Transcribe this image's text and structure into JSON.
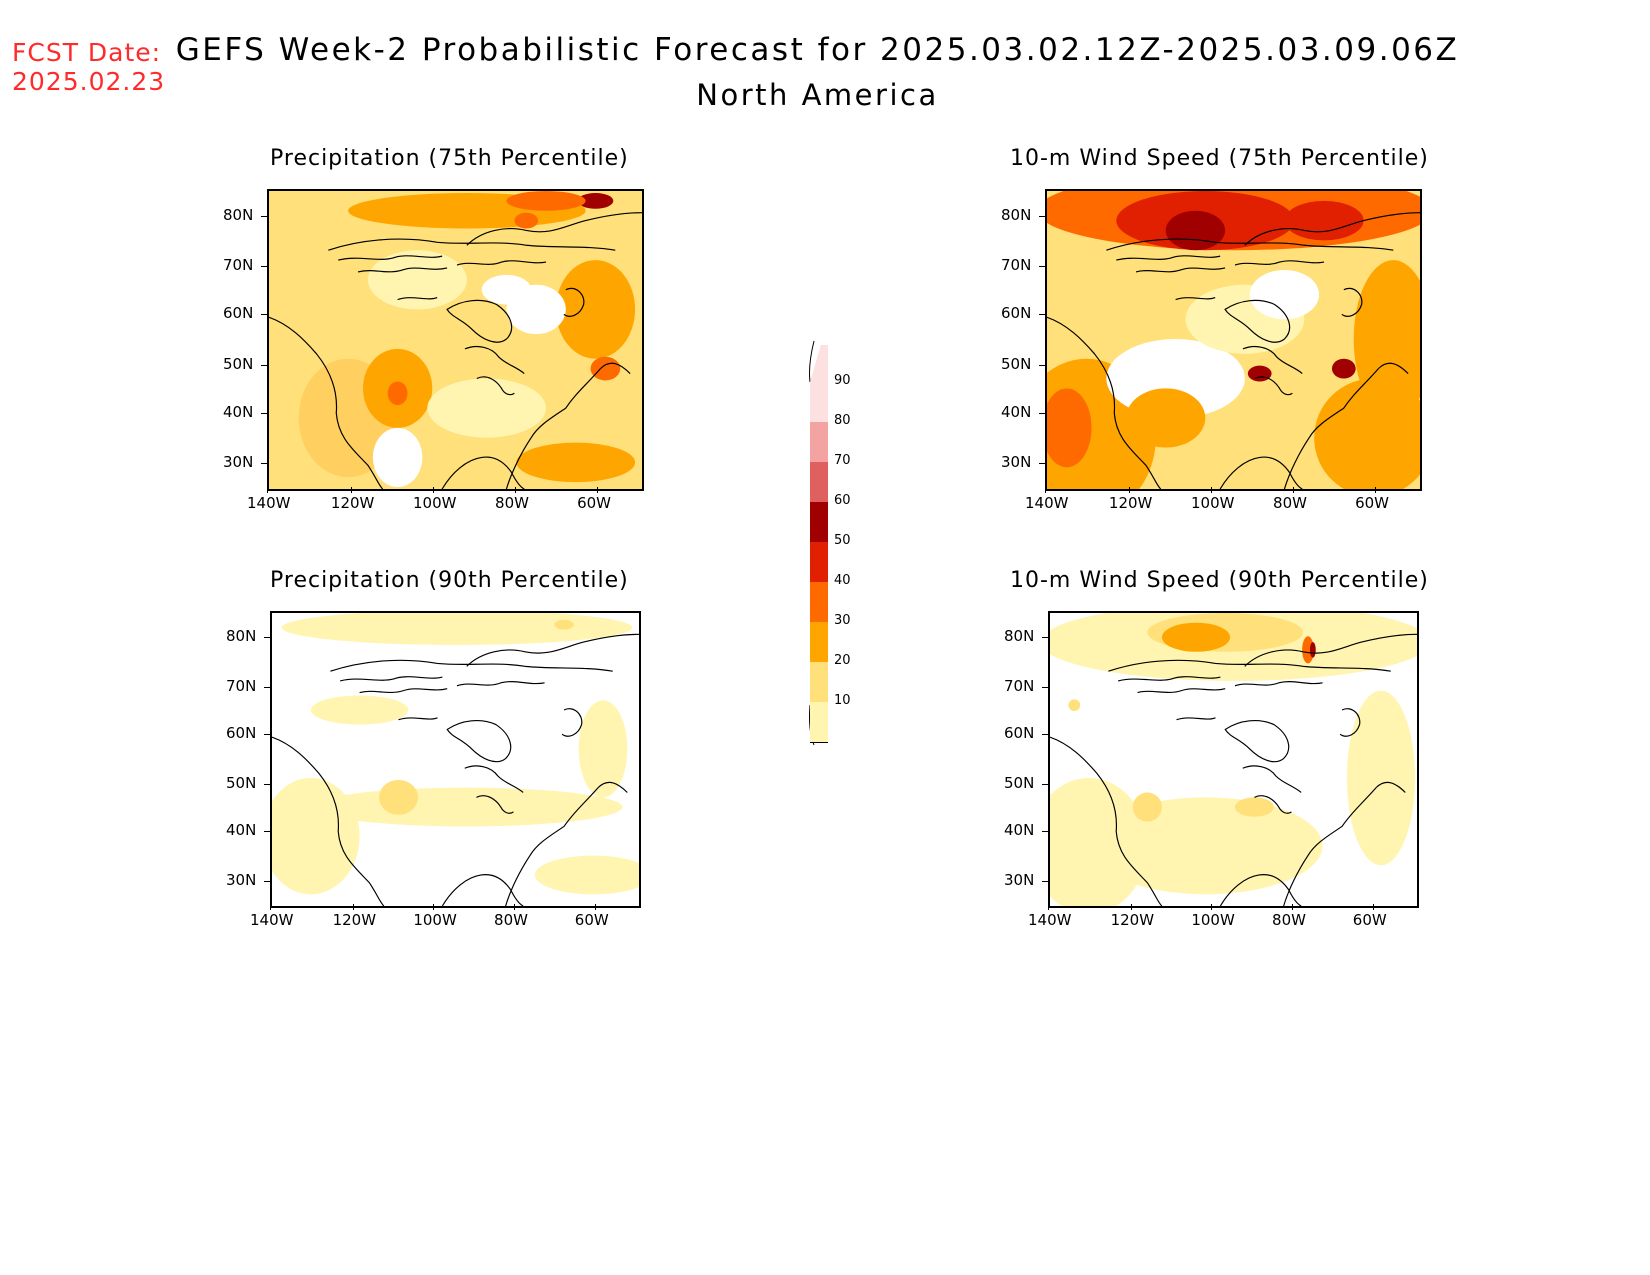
{
  "header": {
    "fcst_label": "FCST Date:",
    "fcst_date": "2025.02.23",
    "title": "GEFS Week-2 Probabilistic Forecast for 2025.03.02.12Z-2025.03.09.06Z",
    "subtitle": "North America"
  },
  "axes": {
    "lat_labels": [
      "80N",
      "70N",
      "60N",
      "50N",
      "40N",
      "30N"
    ],
    "lon_labels": [
      "140W",
      "120W",
      "100W",
      "80W",
      "60W"
    ]
  },
  "panels": [
    {
      "id": "precip75",
      "title": "Precipitation (75th Percentile)"
    },
    {
      "id": "wind75",
      "title": "10-m Wind Speed (75th Percentile)"
    },
    {
      "id": "precip90",
      "title": "Precipitation (90th Percentile)"
    },
    {
      "id": "wind90",
      "title": "10-m Wind Speed (90th Percentile)"
    }
  ],
  "colorbar": {
    "labels": [
      "90",
      "80",
      "70",
      "60",
      "50",
      "40",
      "30",
      "20",
      "10"
    ],
    "colors": [
      "#fde0e0",
      "#f4a3a3",
      "#e06060",
      "#a00000",
      "#e02000",
      "#ff6a00",
      "#ffa500",
      "#ffe07a",
      "#fff5b0"
    ]
  }
}
